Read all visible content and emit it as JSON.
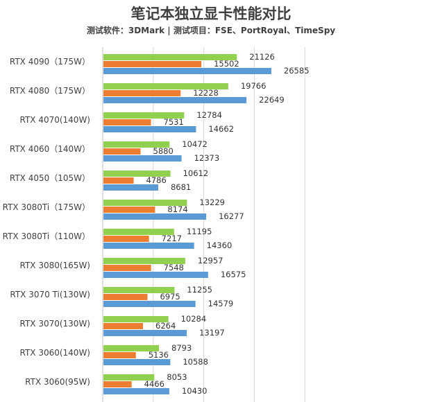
{
  "title": "笔记本独立显卡性能对比",
  "subtitle": "测试软件：3DMark | 测试项目：FSE、PortRoyal、TimeSpy",
  "chart_data": {
    "type": "bar",
    "orientation": "horizontal",
    "categories": [
      "RTX 4090（175W）",
      "RTX 4080（175W）",
      "RTX 4070(140W)",
      "RTX 4060（140W）",
      "RTX 4050（105W）",
      "RTX 3080Ti（175W）",
      "RTX 3080Ti（110W）",
      "RTX 3080(165W)",
      "RTX 3070 Ti(130W)",
      "RTX 3070(130W)",
      "RTX 3060(140W)",
      "RTX 3060(95W)"
    ],
    "series": [
      {
        "color": "#92d050",
        "values": [
          21126,
          19766,
          12784,
          10472,
          10612,
          13229,
          11195,
          12957,
          11255,
          10284,
          8793,
          8053
        ]
      },
      {
        "color": "#ed7d31",
        "values": [
          15502,
          12228,
          7531,
          5880,
          4786,
          8174,
          7217,
          7548,
          6975,
          6264,
          5136,
          4466
        ]
      },
      {
        "color": "#5b9bd5",
        "values": [
          26585,
          22649,
          14662,
          12373,
          8681,
          16277,
          14360,
          16575,
          14579,
          13197,
          10588,
          10430
        ]
      }
    ],
    "xlim": [
      0,
      40000
    ],
    "grid": true,
    "legend": "none"
  }
}
